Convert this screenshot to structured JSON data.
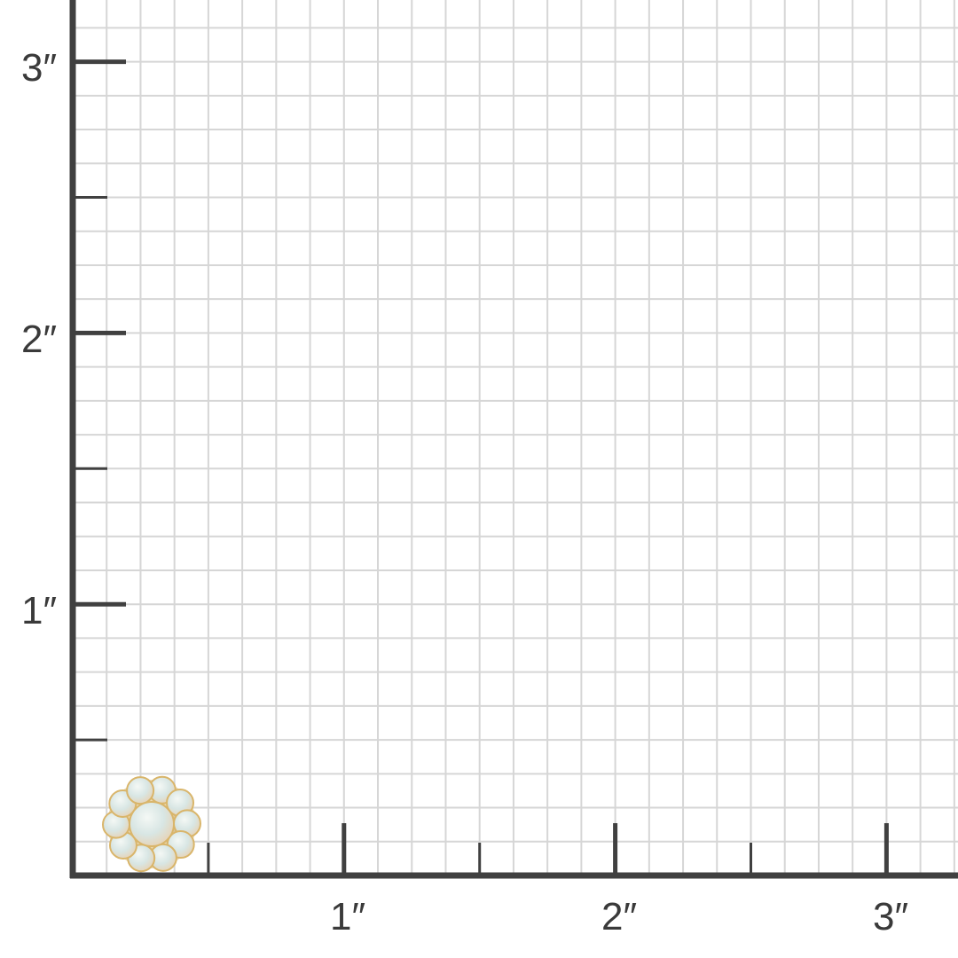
{
  "scale": {
    "unit_symbol": "″",
    "x_labels": [
      "1″",
      "2″",
      "3″"
    ],
    "y_labels": [
      "1″",
      "2″",
      "3″"
    ],
    "grid_subdivisions_per_inch": 8
  },
  "product": {
    "icon": "opal-cluster-earring-image",
    "width_in": 0.36,
    "height_in": 0.36
  },
  "colors": {
    "axis": "#404040",
    "grid": "#d6d6d6",
    "gold": "#d9b56a",
    "opal": "#dfe8e6"
  }
}
